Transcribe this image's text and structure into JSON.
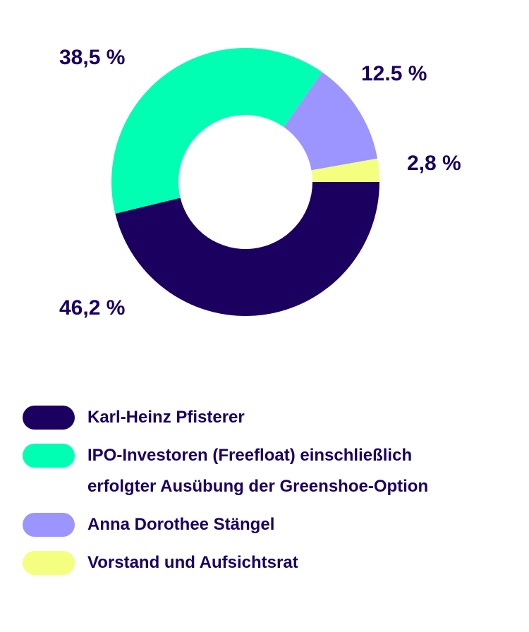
{
  "chart_data": {
    "type": "pie",
    "variant": "donut",
    "categories": [
      "Karl-Heinz Pfisterer",
      "IPO-Investoren (Freefloat) einschließlich erfolgter Ausübung der Greenshoe-Option",
      "Anna Dorothee Stängel",
      "Vorstand und Aufsichtsrat"
    ],
    "values": [
      46.2,
      38.5,
      12.5,
      2.8
    ],
    "value_labels": [
      "46,2 %",
      "38,5 %",
      "12.5 %",
      "2,8 %"
    ],
    "colors": [
      "#1b0060",
      "#00ffb3",
      "#9c95ff",
      "#f4ff7f"
    ],
    "legend_position": "bottom"
  },
  "legend": {
    "items": [
      {
        "label_line1": "Karl-Heinz Pfisterer",
        "label_line2": "",
        "color": "#1b0060"
      },
      {
        "label_line1": "IPO-Investoren (Freefloat) einschließlich",
        "label_line2": "erfolgter Ausübung der Greenshoe-Option",
        "color": "#00ffb3"
      },
      {
        "label_line1": "Anna Dorothee Stängel",
        "label_line2": "",
        "color": "#9c95ff"
      },
      {
        "label_line1": "Vorstand und Aufsichtsrat",
        "label_line2": "",
        "color": "#f4ff7f"
      }
    ]
  }
}
